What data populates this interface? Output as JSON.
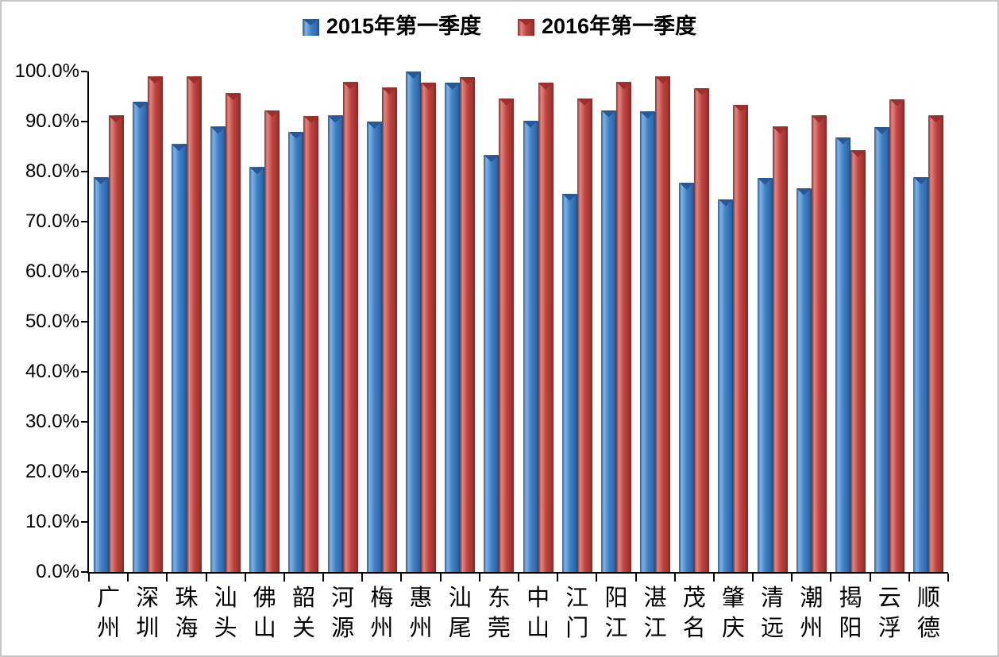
{
  "legend": {
    "items": [
      {
        "label": "2015年第一季度",
        "color": "#4080C6"
      },
      {
        "label": "2016年第一季度",
        "color": "#C3423E"
      }
    ]
  },
  "y_axis": {
    "tick_labels": [
      "0.0%",
      "10.0%",
      "20.0%",
      "30.0%",
      "40.0%",
      "50.0%",
      "60.0%",
      "70.0%",
      "80.0%",
      "90.0%",
      "100.0%"
    ]
  },
  "chart_data": {
    "type": "bar",
    "title": "",
    "xlabel": "",
    "ylabel": "",
    "ylim": [
      0,
      100
    ],
    "ytick_step": 10,
    "ytick_format": "percent_one_decimal",
    "grid": false,
    "legend_position": "top",
    "categories": [
      "广州",
      "深圳",
      "珠海",
      "汕头",
      "佛山",
      "韶关",
      "河源",
      "梅州",
      "惠州",
      "汕尾",
      "东莞",
      "中山",
      "江门",
      "阳江",
      "湛江",
      "茂名",
      "肇庆",
      "清远",
      "潮州",
      "揭阳",
      "云浮",
      "顺德"
    ],
    "series": [
      {
        "name": "2015年第一季度",
        "color": "#4080C6",
        "color_light": "#7FB2E5",
        "color_dark": "#1F4C83",
        "values": [
          78.9,
          94.0,
          85.5,
          89.0,
          80.9,
          88.0,
          91.2,
          90.0,
          100.0,
          97.8,
          83.3,
          90.2,
          75.6,
          92.3,
          92.0,
          77.8,
          74.5,
          78.8,
          76.7,
          86.9,
          88.9,
          78.9
        ]
      },
      {
        "name": "2016年第一季度",
        "color": "#C3423E",
        "color_light": "#E08680",
        "color_dark": "#7E2824",
        "values": [
          91.2,
          99.0,
          99.0,
          95.7,
          92.3,
          91.1,
          97.9,
          96.8,
          97.8,
          98.9,
          94.6,
          97.8,
          94.6,
          97.9,
          99.0,
          96.7,
          93.4,
          89.0,
          91.2,
          84.3,
          94.5,
          91.2
        ]
      }
    ]
  }
}
